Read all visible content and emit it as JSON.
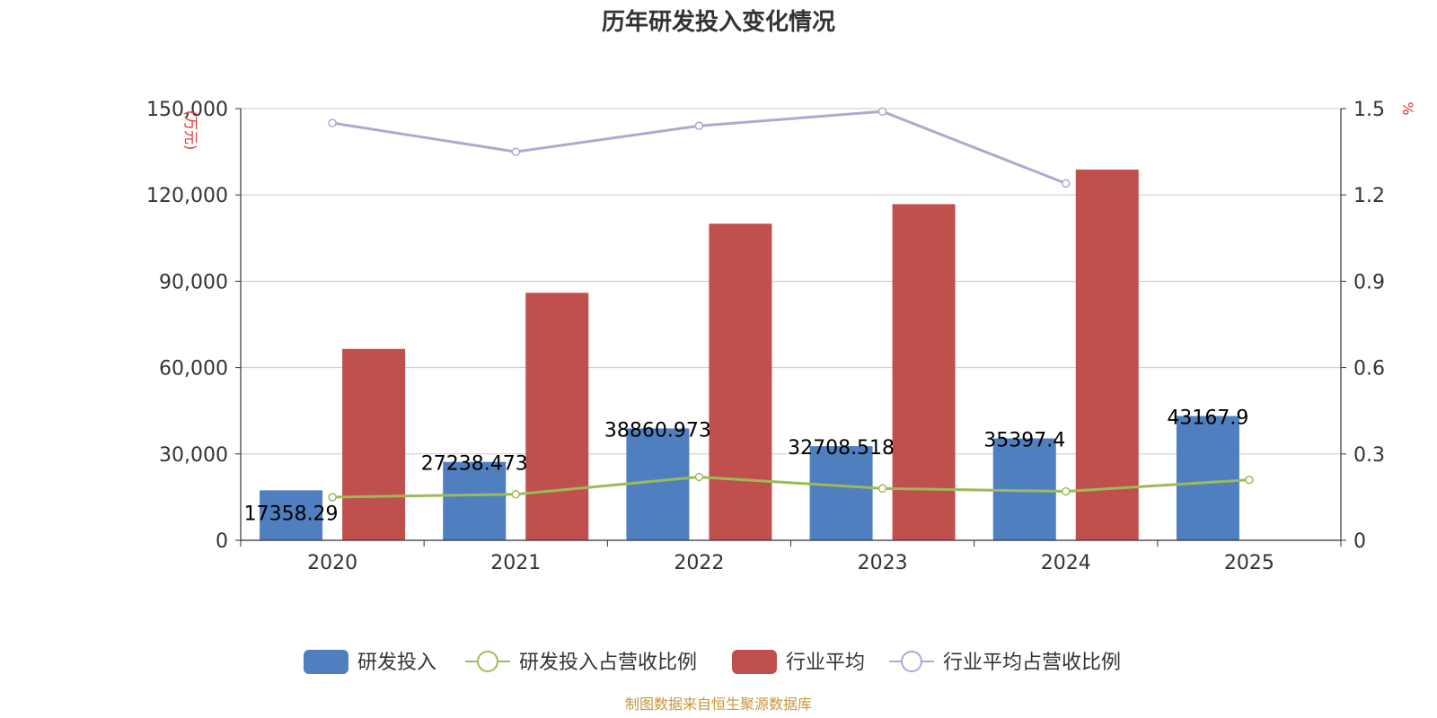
{
  "chart_data": {
    "type": "bar",
    "title": "历年研发投入变化情况",
    "categories": [
      "2020",
      "2021",
      "2022",
      "2023",
      "2024",
      "2025"
    ],
    "y_left": {
      "label": "(万元)",
      "min": 0,
      "max": 150000,
      "ticks": [
        "0",
        "30,000",
        "60,000",
        "90,000",
        "120,000",
        "150,000"
      ],
      "tick_values": [
        0,
        30000,
        60000,
        90000,
        120000,
        150000
      ]
    },
    "y_right": {
      "label": "%",
      "min": 0,
      "max": 1.5,
      "ticks": [
        "0",
        "0.3",
        "0.6",
        "0.9",
        "1.2",
        "1.5"
      ],
      "tick_values": [
        0,
        0.3,
        0.6,
        0.9,
        1.2,
        1.5
      ]
    },
    "grid": true,
    "legend_position": "bottom-center",
    "series": [
      {
        "name": "研发投入",
        "type": "bar",
        "axis": "left",
        "color": "#4f7fbf",
        "values": [
          17358.29,
          27238.473,
          38860.973,
          32708.518,
          35397.4,
          43167.9
        ],
        "labels": [
          "17358.29",
          "27238.473",
          "38860.973",
          "32708.518",
          "35397.4",
          "43167.9"
        ]
      },
      {
        "name": "研发投入占营收比例",
        "type": "line",
        "axis": "right",
        "color": "#9bbb59",
        "values": [
          0.15,
          0.16,
          0.22,
          0.18,
          0.17,
          0.21
        ]
      },
      {
        "name": "行业平均",
        "type": "bar",
        "axis": "left",
        "color": "#c0504d",
        "values": [
          66500,
          86000,
          110000,
          116800,
          128800,
          null
        ]
      },
      {
        "name": "行业平均占营收比例",
        "type": "line",
        "axis": "right",
        "color": "#b3a6cf",
        "values": [
          1.45,
          1.35,
          1.44,
          1.49,
          1.24,
          null
        ]
      }
    ]
  },
  "footer": {
    "source": "制图数据来自恒生聚源数据库"
  }
}
